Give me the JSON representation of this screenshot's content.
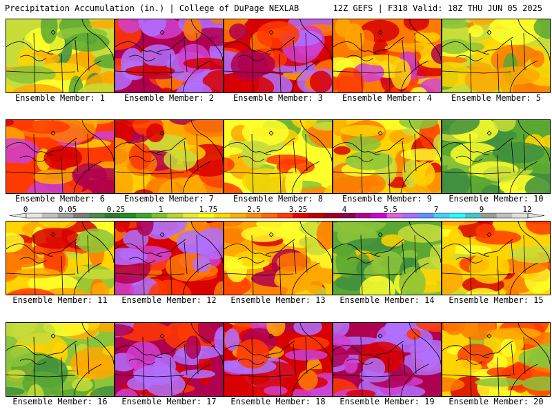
{
  "header": {
    "left": "Precipitation Accumulation (in.) | College of DuPage NEXLAB",
    "right": "12Z GEFS | F318 Valid: 18Z THU JUN 05 2025"
  },
  "members": [
    {
      "label": "Ensemble Member: 1",
      "level": 0.3
    },
    {
      "label": "Ensemble Member: 2",
      "level": 0.85
    },
    {
      "label": "Ensemble Member: 3",
      "level": 0.75
    },
    {
      "label": "Ensemble Member: 4",
      "level": 0.6
    },
    {
      "label": "Ensemble Member: 5",
      "level": 0.35
    },
    {
      "label": "Ensemble Member: 6",
      "level": 0.7
    },
    {
      "label": "Ensemble Member: 7",
      "level": 0.55
    },
    {
      "label": "Ensemble Member: 8",
      "level": 0.4
    },
    {
      "label": "Ensemble Member: 9",
      "level": 0.45
    },
    {
      "label": "Ensemble Member: 10",
      "level": 0.15
    },
    {
      "label": "Ensemble Member: 11",
      "level": 0.45
    },
    {
      "label": "Ensemble Member: 12",
      "level": 0.8
    },
    {
      "label": "Ensemble Member: 13",
      "level": 0.55
    },
    {
      "label": "Ensemble Member: 14",
      "level": 0.2
    },
    {
      "label": "Ensemble Member: 15",
      "level": 0.5
    },
    {
      "label": "Ensemble Member: 16",
      "level": 0.25
    },
    {
      "label": "Ensemble Member: 17",
      "level": 0.9
    },
    {
      "label": "Ensemble Member: 18",
      "level": 0.75
    },
    {
      "label": "Ensemble Member: 19",
      "level": 0.9
    },
    {
      "label": "Ensemble Member: 20",
      "level": 0.45
    }
  ],
  "colorbar": {
    "ticks": [
      "0",
      "0.05",
      "0.25",
      "1",
      "1.75",
      "2.5",
      "3.25",
      "4",
      "5.5",
      "7",
      "9",
      "12"
    ],
    "colors": [
      "#e6e6e6",
      "#bfbfbf",
      "#a0a0a0",
      "#7d7d7d",
      "#4a8a4a",
      "#2f7a2f",
      "#1f8f1f",
      "#3caa2a",
      "#7cc22a",
      "#b8d62a",
      "#e8ea2a",
      "#ffff00",
      "#ffd700",
      "#ffb000",
      "#ff9000",
      "#ff6a00",
      "#ff3c00",
      "#e80000",
      "#c00000",
      "#a00020",
      "#8a0050",
      "#b0009a",
      "#d000d0",
      "#e060e0",
      "#a070ff",
      "#6090ff",
      "#40d0ff",
      "#20ffff",
      "#40c8c8",
      "#9a9a9a",
      "#c0c0c0",
      "#e0e0e0"
    ]
  }
}
